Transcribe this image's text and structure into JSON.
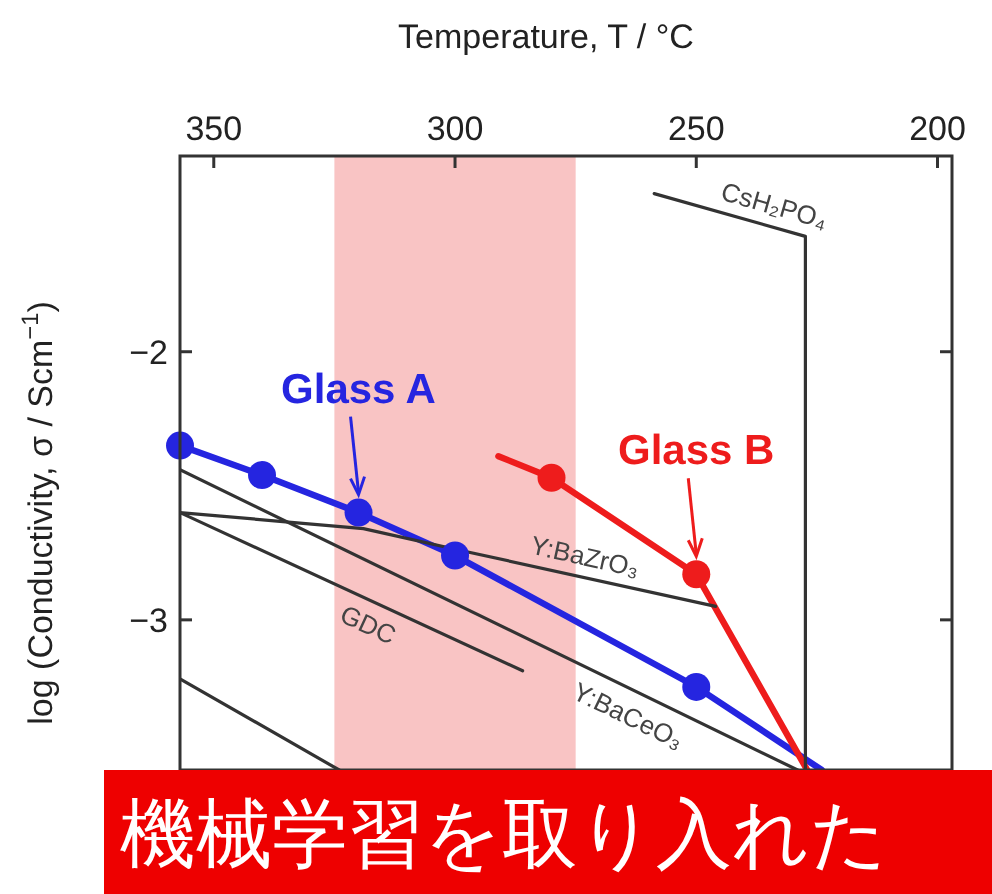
{
  "chart_data": {
    "type": "line",
    "xlabel": "Temperature, T / °C",
    "ylabel": "log (Conductivity, σ / Scm$^{−1}$)",
    "xlim": [
      357,
      197
    ],
    "xticks": [
      350,
      300,
      250,
      200
    ],
    "ylim": [
      -3.56,
      -1.27
    ],
    "yticks": [
      {
        "value": -2,
        "label": "−2"
      },
      {
        "value": -3,
        "label": "−3"
      }
    ],
    "grid": false,
    "bands": [
      {
        "axis": "x",
        "from": 325,
        "to": 275,
        "color": "#f9c4c4"
      }
    ],
    "series": [
      {
        "color": "#2525e0",
        "marker": "none",
        "x": [
          357,
          340,
          320,
          300,
          250,
          224
        ],
        "values": [
          -2.35,
          -2.46,
          -2.6,
          -2.76,
          -3.25,
          -3.56
        ]
      },
      {
        "type": "scatter",
        "name": "Glass A",
        "color": "#2525e0",
        "marker": "circle",
        "x": [
          357,
          340,
          320,
          300,
          250
        ],
        "values": [
          -2.35,
          -2.46,
          -2.6,
          -2.76,
          -3.25
        ]
      },
      {
        "color": "#ee1c1c",
        "marker": "none",
        "x": [
          291,
          280,
          250,
          227
        ],
        "values": [
          -2.39,
          -2.47,
          -2.83,
          -3.56
        ]
      },
      {
        "type": "scatter",
        "name": "Glass B",
        "color": "#ee1c1c",
        "marker": "circle",
        "x": [
          280,
          250
        ],
        "values": [
          -2.47,
          -2.83
        ]
      },
      {
        "color": "#333333",
        "marker": "none",
        "x": [
          258.7,
          227.4,
          227.4
        ],
        "values": [
          -1.41,
          -1.57,
          -3.56
        ]
      },
      {
        "color": "#333333",
        "marker": "none",
        "x": [
          357,
          319,
          299,
          246
        ],
        "values": [
          -2.6,
          -2.66,
          -2.74,
          -2.95
        ]
      },
      {
        "color": "#333333",
        "marker": "none",
        "x": [
          357,
          229
        ],
        "values": [
          -2.44,
          -3.56
        ]
      },
      {
        "color": "#333333",
        "marker": "none",
        "x": [
          357,
          286
        ],
        "values": [
          -2.6,
          -3.19
        ]
      },
      {
        "color": "#333333",
        "marker": "none",
        "x": [
          357,
          324
        ],
        "values": [
          -3.22,
          -3.56
        ]
      }
    ],
    "annotations": [
      {
        "text": "CsH₂PO₄",
        "x": 235,
        "y": -1.53
      },
      {
        "text": "Y:BaZrO₃",
        "x": 274,
        "y": -2.84
      },
      {
        "text": "GDC",
        "x": 316,
        "y": -2.94
      },
      {
        "text": "Y:BaCeO₃",
        "x": 262,
        "y": -3.28
      },
      "機械学習を取り入れた"
    ]
  }
}
